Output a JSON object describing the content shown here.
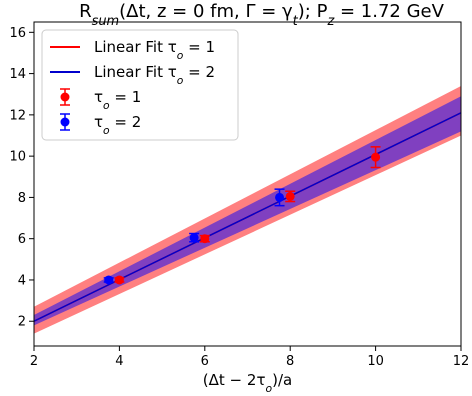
{
  "chart_data": {
    "type": "line",
    "title": "R_sum(Δt, z = 0 fm, Γ = γ_t); P_z = 1.72 GeV",
    "xlabel": "(Δt − 2τ_o)/a",
    "ylabel": "",
    "xlim": [
      2,
      12
    ],
    "ylim": [
      0.8,
      16.5
    ],
    "xticks": [
      2,
      4,
      6,
      8,
      10,
      12
    ],
    "yticks": [
      2,
      4,
      6,
      8,
      10,
      12,
      14,
      16
    ],
    "grid": false,
    "legend_position": "top-left",
    "series": [
      {
        "name": "Linear Fit τo = 1",
        "kind": "fit",
        "color": "#ff0000",
        "band_color": "#ff8080",
        "x": [
          2,
          12
        ],
        "y": [
          2.0,
          12.1
        ],
        "y_low": [
          1.4,
          11.0
        ],
        "y_high": [
          2.7,
          13.4
        ]
      },
      {
        "name": "Linear Fit τo = 2",
        "kind": "fit",
        "color": "#0000cc",
        "band_color": "#8040c0",
        "x": [
          2,
          12
        ],
        "y": [
          2.0,
          12.1
        ],
        "y_low": [
          1.8,
          11.2
        ],
        "y_high": [
          2.3,
          12.9
        ]
      },
      {
        "name": "τo = 1",
        "kind": "points",
        "color": "#ff0000",
        "x": [
          4.0,
          6.0,
          8.0,
          10.0
        ],
        "y": [
          4.0,
          6.0,
          8.05,
          9.95
        ],
        "yerr": [
          0.1,
          0.15,
          0.25,
          0.5
        ]
      },
      {
        "name": "τo = 2",
        "kind": "points",
        "color": "#0000ff",
        "x": [
          3.75,
          5.75,
          7.75
        ],
        "y": [
          4.0,
          6.05,
          8.0
        ],
        "yerr": [
          0.1,
          0.2,
          0.4
        ]
      }
    ]
  }
}
